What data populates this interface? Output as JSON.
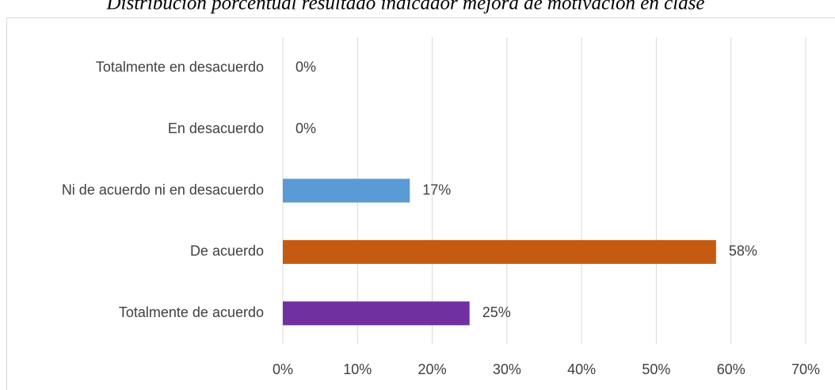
{
  "chart_data": {
    "type": "bar",
    "orientation": "horizontal",
    "title": "Distribución porcentual resultado indicador mejora de motivación en clase",
    "categories": [
      "Totalmente en desacuerdo",
      "En desacuerdo",
      "Ni de acuerdo ni en desacuerdo",
      "De acuerdo",
      "Totalmente de acuerdo"
    ],
    "values": [
      0,
      0,
      17,
      58,
      25
    ],
    "value_labels": [
      "0%",
      "0%",
      "17%",
      "58%",
      "25%"
    ],
    "colors": [
      null,
      null,
      "#5b9bd5",
      "#c55a11",
      "#7030a0"
    ],
    "xlim": [
      0,
      70
    ],
    "xticks": [
      {
        "value": 0,
        "label": "0%"
      },
      {
        "value": 10,
        "label": "10%"
      },
      {
        "value": 20,
        "label": "20%"
      },
      {
        "value": 30,
        "label": "30%"
      },
      {
        "value": 40,
        "label": "40%"
      },
      {
        "value": 50,
        "label": "50%"
      },
      {
        "value": 60,
        "label": "60%"
      },
      {
        "value": 70,
        "label": "70%"
      }
    ],
    "grid": true
  }
}
